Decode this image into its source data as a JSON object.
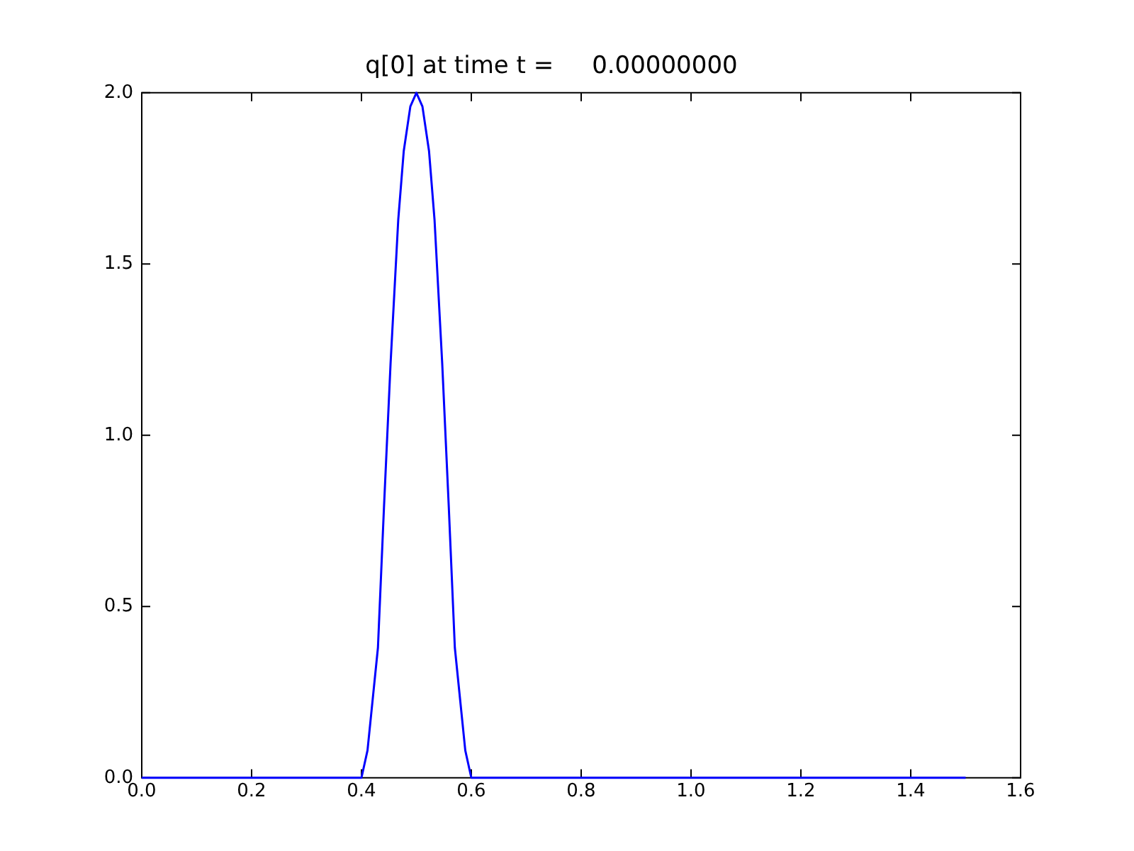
{
  "chart_data": {
    "type": "line",
    "title": "q[0] at time t =     0.00000000",
    "x": [
      0,
      0.1,
      0.2,
      0.3,
      0.4,
      0.411,
      0.43,
      0.441,
      0.453,
      0.467,
      0.477,
      0.489,
      0.5,
      0.511,
      0.523,
      0.533,
      0.547,
      0.559,
      0.57,
      0.589,
      0.6,
      0.7,
      0.8,
      0.9,
      1.0,
      1.1,
      1.2,
      1.3,
      1.4,
      1.5
    ],
    "series": [
      {
        "color": "#0000ff",
        "values": [
          0,
          0,
          0,
          0,
          0,
          0.08,
          0.38,
          0.79,
          1.21,
          1.63,
          1.83,
          1.96,
          2,
          1.96,
          1.83,
          1.63,
          1.21,
          0.79,
          0.38,
          0.08,
          0,
          0,
          0,
          0,
          0,
          0,
          0,
          0,
          0,
          0
        ]
      }
    ],
    "xlim": [
      0,
      1.6
    ],
    "ylim": [
      0,
      2
    ],
    "xticks": [
      {
        "value": 0,
        "label": "0.0"
      },
      {
        "value": 0.2,
        "label": "0.2"
      },
      {
        "value": 0.4,
        "label": "0.4"
      },
      {
        "value": 0.6,
        "label": "0.6"
      },
      {
        "value": 0.8,
        "label": "0.8"
      },
      {
        "value": 1,
        "label": "1.0"
      },
      {
        "value": 1.2,
        "label": "1.2"
      },
      {
        "value": 1.4,
        "label": "1.4"
      },
      {
        "value": 1.6,
        "label": "1.6"
      }
    ],
    "yticks": [
      {
        "value": 0,
        "label": "0.0"
      },
      {
        "value": 0.5,
        "label": "0.5"
      },
      {
        "value": 1,
        "label": "1.0"
      },
      {
        "value": 1.5,
        "label": "1.5"
      },
      {
        "value": 2,
        "label": "2.0"
      }
    ],
    "grid": false,
    "legend": false,
    "marker": "none",
    "line_style": "solid"
  }
}
